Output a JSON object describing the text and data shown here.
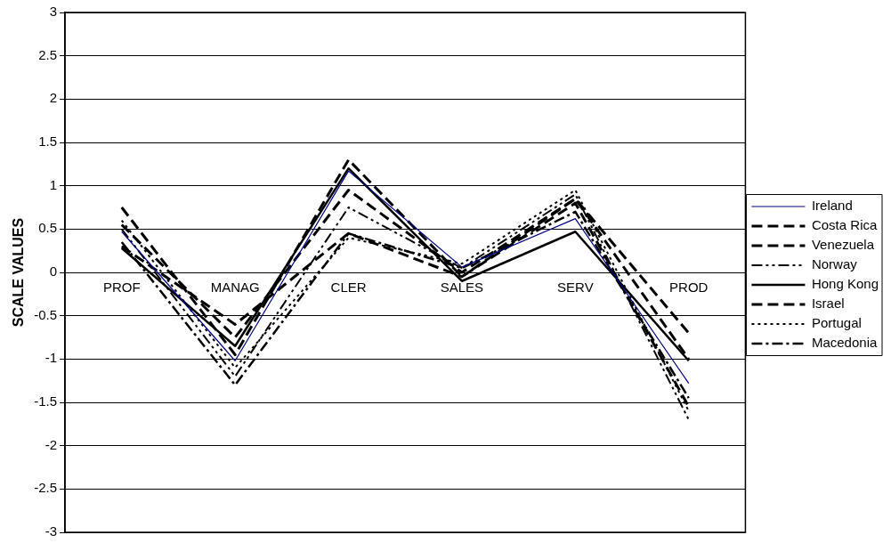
{
  "chart_data": {
    "type": "line",
    "ylabel": "SCALE VALUES",
    "categories": [
      "PROF",
      "MANAG",
      "CLER",
      "SALES",
      "SERV",
      "PROD"
    ],
    "series": [
      {
        "name": "Ireland",
        "color": "#000080",
        "line_style": "solid",
        "values": [
          0.47,
          -1.02,
          1.17,
          0.06,
          0.62,
          -1.28
        ]
      },
      {
        "name": "Costa Rica",
        "color": "#000000",
        "line_style": "dashed",
        "values": [
          0.3,
          -0.6,
          0.45,
          -0.05,
          0.85,
          -1.0
        ]
      },
      {
        "name": "Venezuela",
        "color": "#000000",
        "line_style": "dashed",
        "values": [
          0.55,
          -0.75,
          0.95,
          0.0,
          0.85,
          -0.7
        ]
      },
      {
        "name": "Norway",
        "color": "#000000",
        "line_style": "dashdotdot",
        "values": [
          0.5,
          -1.2,
          0.75,
          0.05,
          0.9,
          -1.7
        ]
      },
      {
        "name": "Hong Kong",
        "color": "#000000",
        "line_style": "solid",
        "values": [
          0.28,
          -0.85,
          1.2,
          -0.1,
          0.47,
          -1.02
        ]
      },
      {
        "name": "Israel",
        "color": "#000000",
        "line_style": "dashed",
        "values": [
          0.75,
          -0.95,
          1.3,
          -0.05,
          0.8,
          -1.55
        ]
      },
      {
        "name": "Portugal",
        "color": "#000000",
        "line_style": "dotted",
        "values": [
          0.6,
          -1.1,
          0.4,
          0.1,
          0.95,
          -1.6
        ]
      },
      {
        "name": "Macedonia",
        "color": "#000000",
        "line_style": "dashdot",
        "values": [
          0.35,
          -1.3,
          0.45,
          0.05,
          0.7,
          -1.45
        ]
      }
    ],
    "ylim": [
      -3,
      3
    ],
    "yticks": [
      -3,
      -2.5,
      -2,
      -1.5,
      -1,
      -0.5,
      0,
      0.5,
      1,
      1.5,
      2,
      2.5,
      3
    ],
    "grid": "y",
    "legend": "right",
    "marker": "none"
  }
}
